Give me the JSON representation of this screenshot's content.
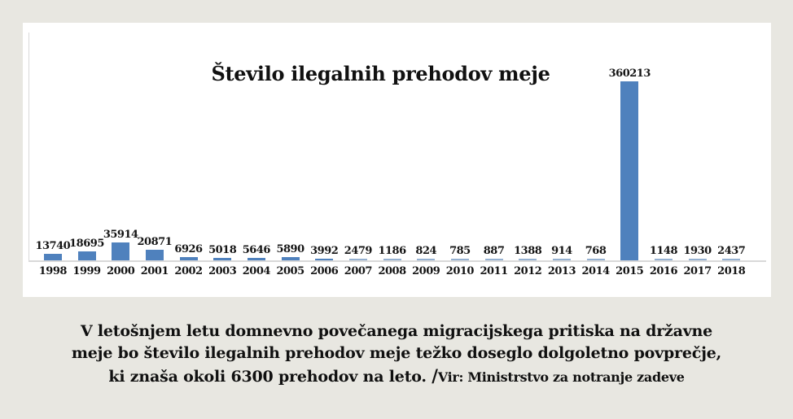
{
  "page": {
    "background_color": "#e8e7e1",
    "panel_color": "#ffffff"
  },
  "chart_data": {
    "type": "bar",
    "title": "Število ilegalnih prehodov meje",
    "categories": [
      "1998",
      "1999",
      "2000",
      "2001",
      "2002",
      "2003",
      "2004",
      "2005",
      "2006",
      "2007",
      "2008",
      "2009",
      "2010",
      "2011",
      "2012",
      "2013",
      "2014",
      "2015",
      "2016",
      "2017",
      "2018"
    ],
    "values": [
      13740,
      18695,
      35914,
      20871,
      6926,
      5018,
      5646,
      5890,
      3992,
      2479,
      1186,
      824,
      785,
      887,
      1388,
      914,
      768,
      360213,
      1148,
      1930,
      2437
    ],
    "xlabel": "",
    "ylabel": "",
    "ylim": [
      0,
      360213
    ],
    "grid": false,
    "legend": "none",
    "data_labels": true,
    "bar_color": "#4f81bd",
    "bar_color_small": "#95b1d2",
    "axis_line_color": "#d9d9d9"
  },
  "caption": {
    "line1": "V letošnjem letu domnevno povečanega migracijskega pritiska na državne",
    "line2": "meje bo število ilegalnih prehodov meje težko doseglo dolgoletno povprečje,",
    "line3": "ki znaša okoli 6300 prehodov na leto.",
    "source_separator": "/",
    "source": "Vir: Ministrstvo za notranje zadeve"
  }
}
